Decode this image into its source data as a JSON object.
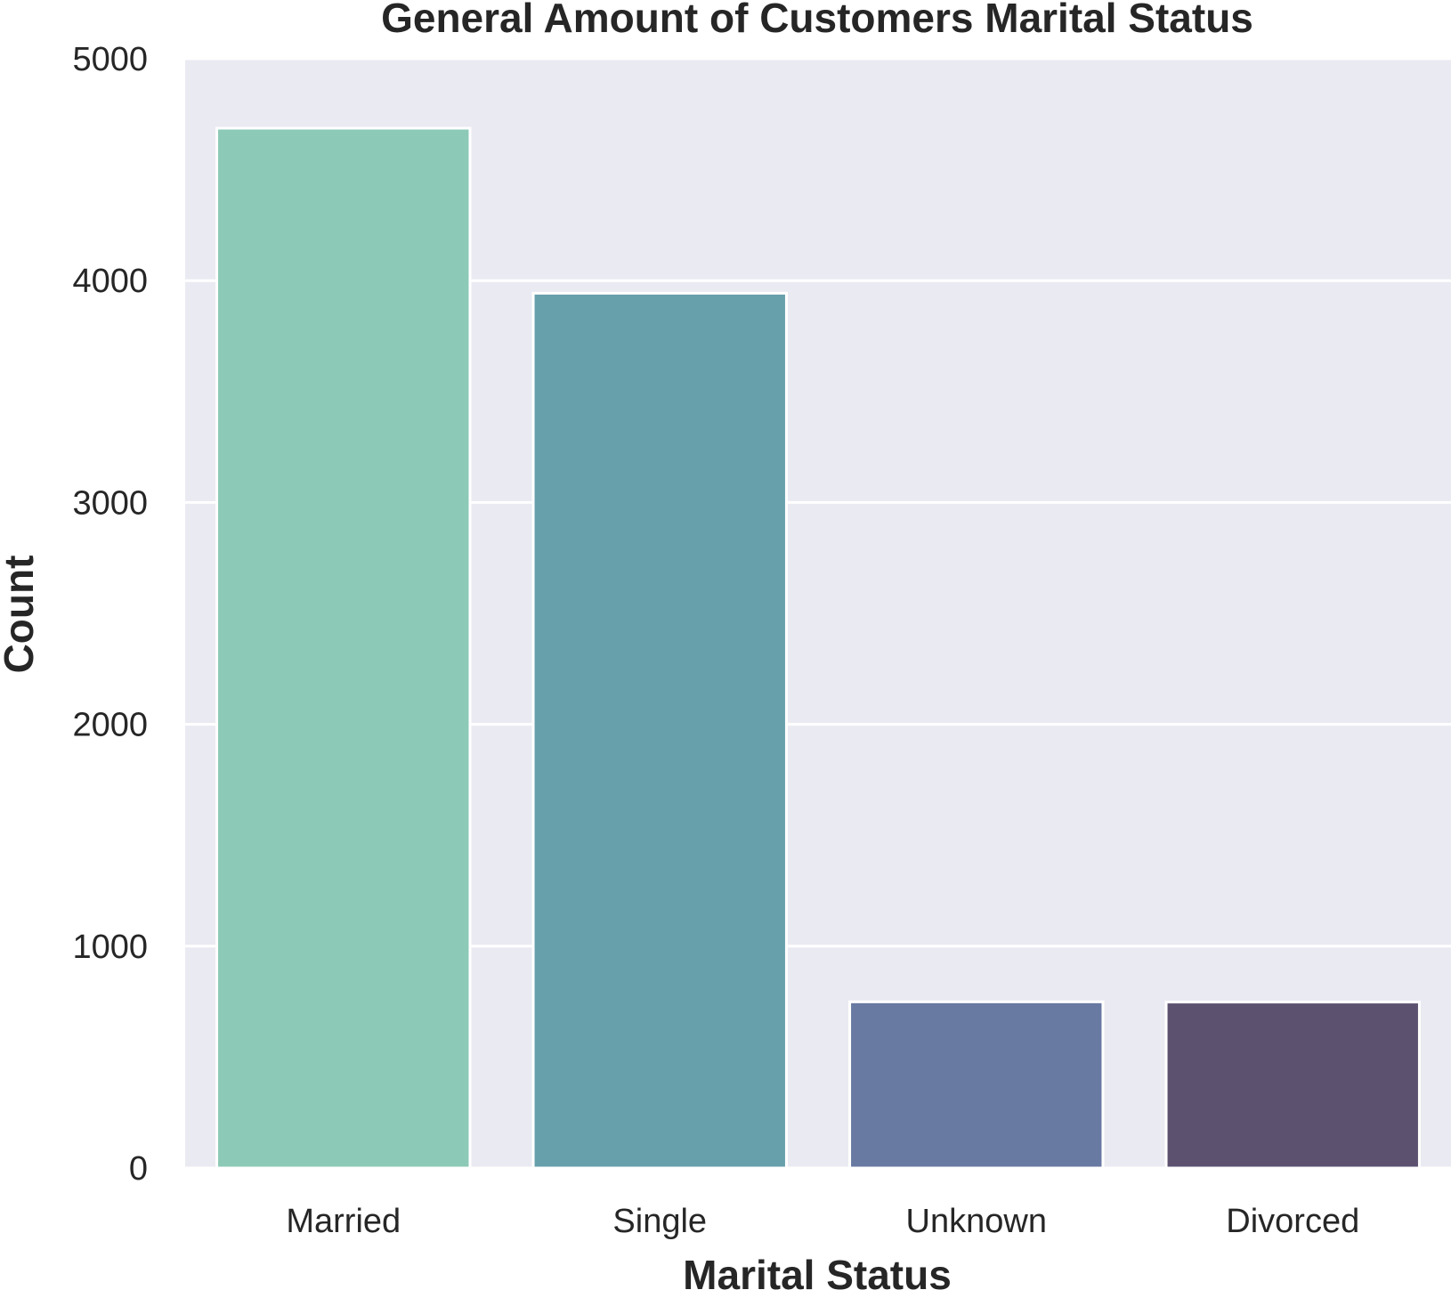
{
  "chart_data": {
    "type": "bar",
    "title": "General Amount of Customers Marital Status",
    "xlabel": "Marital Status",
    "ylabel": "Count",
    "categories": [
      "Married",
      "Single",
      "Unknown",
      "Divorced"
    ],
    "values": [
      4687,
      3943,
      749,
      748
    ],
    "ylim": [
      0,
      5000
    ],
    "yticks": [
      0,
      1000,
      2000,
      3000,
      4000,
      5000
    ],
    "grid": true,
    "colors": [
      "#8cc9b7",
      "#679fab",
      "#6879a2",
      "#5c5270"
    ],
    "background": "#eaeaf2"
  }
}
